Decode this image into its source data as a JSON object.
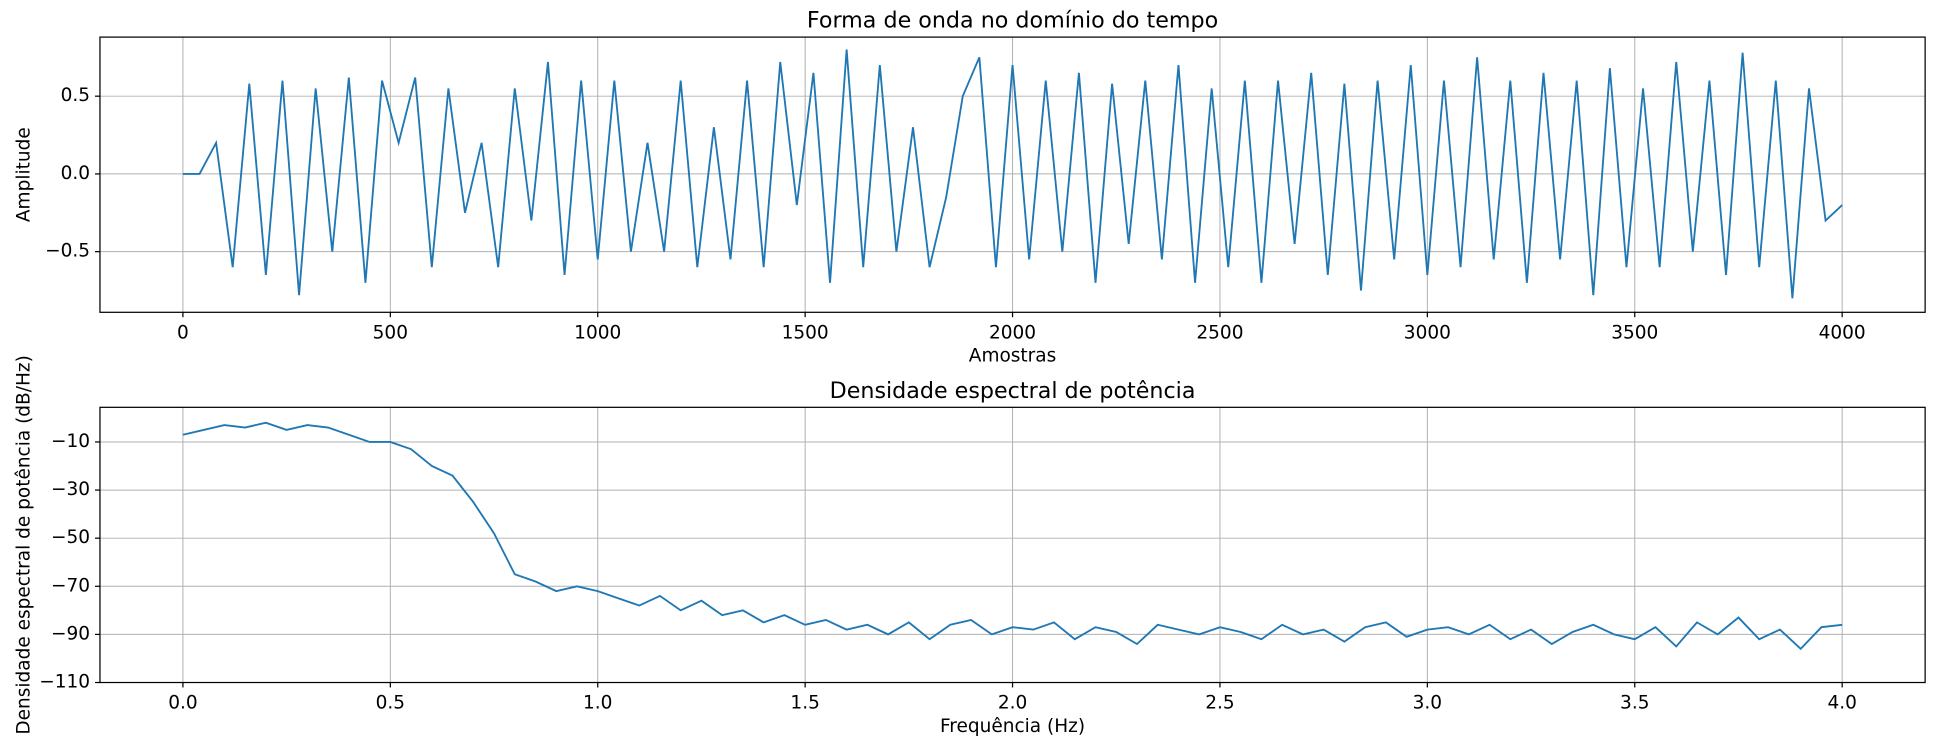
{
  "chart_data": [
    {
      "type": "line",
      "title": "Forma de onda no domínio do tempo",
      "xlabel": "Amostras",
      "ylabel": "Amplitude",
      "x": [
        0,
        40,
        80,
        120,
        160,
        200,
        240,
        280,
        320,
        360,
        400,
        440,
        480,
        520,
        560,
        600,
        640,
        680,
        720,
        760,
        800,
        840,
        880,
        920,
        960,
        1000,
        1040,
        1080,
        1120,
        1160,
        1200,
        1240,
        1280,
        1320,
        1360,
        1400,
        1440,
        1480,
        1520,
        1560,
        1600,
        1640,
        1680,
        1720,
        1760,
        1800,
        1840,
        1880,
        1920,
        1960,
        2000,
        2040,
        2080,
        2120,
        2160,
        2200,
        2240,
        2280,
        2320,
        2360,
        2400,
        2440,
        2480,
        2520,
        2560,
        2600,
        2640,
        2680,
        2720,
        2760,
        2800,
        2840,
        2880,
        2920,
        2960,
        3000,
        3040,
        3080,
        3120,
        3160,
        3200,
        3240,
        3280,
        3320,
        3360,
        3400,
        3440,
        3480,
        3520,
        3560,
        3600,
        3640,
        3680,
        3720,
        3760,
        3800,
        3840,
        3880,
        3920,
        3960,
        4000
      ],
      "series": [
        {
          "color": "#1f77b4",
          "values": [
            0,
            0,
            0.2,
            -0.6,
            0.58,
            -0.65,
            0.6,
            -0.78,
            0.55,
            -0.5,
            0.62,
            -0.7,
            0.6,
            0.2,
            0.62,
            -0.6,
            0.55,
            -0.25,
            0.2,
            -0.6,
            0.55,
            -0.3,
            0.72,
            -0.65,
            0.6,
            -0.55,
            0.6,
            -0.5,
            0.2,
            -0.5,
            0.6,
            -0.6,
            0.3,
            -0.55,
            0.6,
            -0.6,
            0.72,
            -0.2,
            0.65,
            -0.7,
            0.8,
            -0.6,
            0.7,
            -0.5,
            0.3,
            -0.6,
            -0.15,
            0.5,
            0.75,
            -0.6,
            0.7,
            -0.55,
            0.6,
            -0.5,
            0.65,
            -0.7,
            0.58,
            -0.45,
            0.6,
            -0.55,
            0.7,
            -0.7,
            0.55,
            -0.6,
            0.6,
            -0.7,
            0.6,
            -0.45,
            0.65,
            -0.65,
            0.58,
            -0.75,
            0.6,
            -0.55,
            0.7,
            -0.65,
            0.6,
            -0.6,
            0.75,
            -0.55,
            0.6,
            -0.7,
            0.65,
            -0.55,
            0.6,
            -0.78,
            0.68,
            -0.6,
            0.55,
            -0.6,
            0.72,
            -0.5,
            0.6,
            -0.65,
            0.78,
            -0.6,
            0.6,
            -0.8,
            0.55,
            -0.3,
            -0.2
          ]
        }
      ],
      "xlim": [
        -200,
        4200
      ],
      "ylim": [
        -0.89,
        0.88
      ],
      "xticks": [
        0,
        500,
        1000,
        1500,
        2000,
        2500,
        3000,
        3500,
        4000
      ],
      "yticks": [
        {
          "value": -0.5,
          "label": "−0.5"
        },
        {
          "value": 0,
          "label": "0.0"
        },
        0.5
      ],
      "grid": true
    },
    {
      "type": "line",
      "title": "Densidade espectral de potência",
      "xlabel": "Frequência (Hz)",
      "ylabel": "Densidade espectral de potência (dB/Hz)",
      "x": [
        0,
        0.05,
        0.1,
        0.15,
        0.2,
        0.25,
        0.3,
        0.35,
        0.4,
        0.45,
        0.5,
        0.55,
        0.6,
        0.65,
        0.7,
        0.75,
        0.8,
        0.85,
        0.9,
        0.95,
        1,
        1.05,
        1.1,
        1.15,
        1.2,
        1.25,
        1.3,
        1.35,
        1.4,
        1.45,
        1.5,
        1.55,
        1.6,
        1.65,
        1.7,
        1.75,
        1.8,
        1.85,
        1.9,
        1.95,
        2,
        2.05,
        2.1,
        2.15,
        2.2,
        2.25,
        2.3,
        2.35,
        2.4,
        2.45,
        2.5,
        2.55,
        2.6,
        2.65,
        2.7,
        2.75,
        2.8,
        2.85,
        2.9,
        2.95,
        3,
        3.05,
        3.1,
        3.15,
        3.2,
        3.25,
        3.3,
        3.35,
        3.4,
        3.45,
        3.5,
        3.55,
        3.6,
        3.65,
        3.7,
        3.75,
        3.8,
        3.85,
        3.9,
        3.95,
        4
      ],
      "series": [
        {
          "color": "#1f77b4",
          "values": [
            -7,
            -5,
            -3,
            -4,
            -2,
            -5,
            -3,
            -4,
            -7,
            -10,
            -10,
            -13,
            -20,
            -24,
            -35,
            -48,
            -65,
            -68,
            -72,
            -70,
            -72,
            -75,
            -78,
            -74,
            -80,
            -76,
            -82,
            -80,
            -85,
            -82,
            -86,
            -84,
            -88,
            -86,
            -90,
            -85,
            -92,
            -86,
            -84,
            -90,
            -87,
            -88,
            -85,
            -92,
            -87,
            -89,
            -94,
            -86,
            -88,
            -90,
            -87,
            -89,
            -92,
            -86,
            -90,
            -88,
            -93,
            -87,
            -85,
            -91,
            -88,
            -87,
            -90,
            -86,
            -92,
            -88,
            -94,
            -89,
            -86,
            -90,
            -92,
            -87,
            -95,
            -85,
            -90,
            -83,
            -92,
            -88,
            -96,
            -87,
            -86
          ]
        }
      ],
      "xlim": [
        -0.2,
        4.2
      ],
      "ylim": [
        -110,
        4.4
      ],
      "xticks": [
        {
          "value": 0,
          "label": "0.0"
        },
        0.5,
        {
          "value": 1,
          "label": "1.0"
        },
        1.5,
        {
          "value": 2,
          "label": "2.0"
        },
        2.5,
        {
          "value": 3,
          "label": "3.0"
        },
        3.5,
        {
          "value": 4,
          "label": "4.0"
        }
      ],
      "yticks": [
        {
          "value": -110,
          "label": "−110"
        },
        {
          "value": -90,
          "label": "−90"
        },
        {
          "value": -70,
          "label": "−70"
        },
        {
          "value": -50,
          "label": "−50"
        },
        {
          "value": -30,
          "label": "−30"
        },
        {
          "value": -10,
          "label": "−10"
        }
      ],
      "grid": true
    }
  ]
}
